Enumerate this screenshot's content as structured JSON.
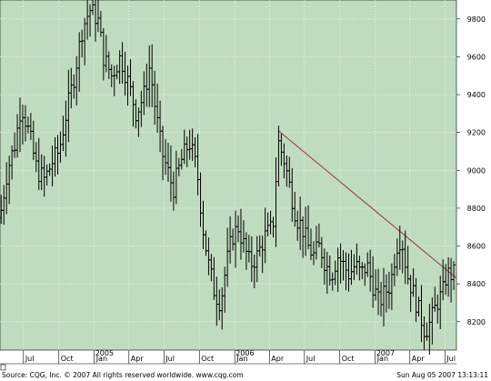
{
  "chart_data": {
    "type": "ohlc-bar",
    "title": "",
    "xlabel": "",
    "ylabel": "",
    "ylim": [
      8050,
      9900
    ],
    "y_ticks": [
      8200,
      8400,
      8600,
      8800,
      9000,
      9200,
      9400,
      9600,
      9800
    ],
    "y_tick_labels": [
      "8200",
      "8400",
      "8600",
      "8800",
      "9000",
      "9200",
      "9400",
      "9600",
      "9800"
    ],
    "x_range": [
      "2004-05-01",
      "2007-07-31"
    ],
    "x_ticks": [
      {
        "date": "2004-07-01",
        "label": "Jul"
      },
      {
        "date": "2004-10-01",
        "label": "Oct"
      },
      {
        "date": "2005-01-01",
        "label": "Jan"
      },
      {
        "date": "2005-04-01",
        "label": "Apr"
      },
      {
        "date": "2005-07-01",
        "label": "Jul"
      },
      {
        "date": "2005-10-01",
        "label": "Oct"
      },
      {
        "date": "2006-01-01",
        "label": "Jan"
      },
      {
        "date": "2006-04-01",
        "label": "Apr"
      },
      {
        "date": "2006-07-01",
        "label": "Jul"
      },
      {
        "date": "2006-10-01",
        "label": "Oct"
      },
      {
        "date": "2007-01-01",
        "label": "Jan"
      },
      {
        "date": "2007-04-01",
        "label": "Apr"
      },
      {
        "date": "2007-07-01",
        "label": "Jul"
      }
    ],
    "year_labels": [
      {
        "date": "2005-01-01",
        "label": "2005"
      },
      {
        "date": "2006-01-01",
        "label": "2006"
      },
      {
        "date": "2007-01-01",
        "label": "2007"
      }
    ],
    "grid": true,
    "price_path": [
      [
        "2004-05-01",
        8750
      ],
      [
        "2004-05-20",
        9000
      ],
      [
        "2004-06-10",
        9150
      ],
      [
        "2004-06-25",
        9350
      ],
      [
        "2004-07-15",
        9200
      ],
      [
        "2004-08-05",
        9000
      ],
      [
        "2004-08-25",
        8950
      ],
      [
        "2004-09-15",
        9050
      ],
      [
        "2004-10-01",
        9100
      ],
      [
        "2004-10-20",
        9300
      ],
      [
        "2004-11-10",
        9500
      ],
      [
        "2004-12-01",
        9750
      ],
      [
        "2004-12-20",
        9850
      ],
      [
        "2005-01-10",
        9800
      ],
      [
        "2005-01-25",
        9600
      ],
      [
        "2005-02-15",
        9500
      ],
      [
        "2005-03-10",
        9600
      ],
      [
        "2005-04-01",
        9450
      ],
      [
        "2005-04-20",
        9300
      ],
      [
        "2005-05-10",
        9400
      ],
      [
        "2005-05-25",
        9550
      ],
      [
        "2005-06-10",
        9300
      ],
      [
        "2005-06-25",
        9100
      ],
      [
        "2005-07-10",
        9000
      ],
      [
        "2005-07-25",
        8900
      ],
      [
        "2005-08-15",
        9050
      ],
      [
        "2005-09-05",
        9150
      ],
      [
        "2005-09-25",
        9000
      ],
      [
        "2005-10-10",
        8700
      ],
      [
        "2005-10-25",
        8500
      ],
      [
        "2005-11-10",
        8350
      ],
      [
        "2005-11-25",
        8300
      ],
      [
        "2005-12-10",
        8500
      ],
      [
        "2005-12-25",
        8650
      ],
      [
        "2006-01-10",
        8700
      ],
      [
        "2006-01-25",
        8600
      ],
      [
        "2006-02-10",
        8500
      ],
      [
        "2006-03-01",
        8550
      ],
      [
        "2006-03-20",
        8650
      ],
      [
        "2006-04-10",
        8700
      ],
      [
        "2006-04-24",
        9150
      ],
      [
        "2006-05-10",
        9050
      ],
      [
        "2006-05-25",
        8900
      ],
      [
        "2006-06-10",
        8750
      ],
      [
        "2006-06-25",
        8700
      ],
      [
        "2006-07-10",
        8600
      ],
      [
        "2006-07-25",
        8550
      ],
      [
        "2006-08-10",
        8600
      ],
      [
        "2006-08-25",
        8500
      ],
      [
        "2006-09-10",
        8450
      ],
      [
        "2006-09-25",
        8550
      ],
      [
        "2006-10-10",
        8500
      ],
      [
        "2006-10-25",
        8450
      ],
      [
        "2006-11-10",
        8500
      ],
      [
        "2006-11-25",
        8450
      ],
      [
        "2006-12-10",
        8500
      ],
      [
        "2006-12-25",
        8400
      ],
      [
        "2007-01-10",
        8300
      ],
      [
        "2007-01-25",
        8350
      ],
      [
        "2007-02-10",
        8400
      ],
      [
        "2007-02-25",
        8600
      ],
      [
        "2007-03-10",
        8650
      ],
      [
        "2007-03-25",
        8450
      ],
      [
        "2007-04-10",
        8350
      ],
      [
        "2007-04-25",
        8250
      ],
      [
        "2007-05-10",
        8150
      ],
      [
        "2007-05-25",
        8200
      ],
      [
        "2007-06-10",
        8300
      ],
      [
        "2007-06-25",
        8350
      ],
      [
        "2007-07-05",
        8450
      ],
      [
        "2007-07-15",
        8450
      ]
    ],
    "trendline": {
      "start": [
        "2006-04-24",
        9210
      ],
      "end": [
        "2007-07-31",
        8430
      ],
      "color": "#8b3a3a"
    },
    "colors": {
      "background": "#c0dcc0",
      "bars": "#000000",
      "grid": "#ffffff",
      "axis_panel": "#ffffff"
    }
  },
  "footer": {
    "left": "Source: CQG, Inc. © 2007 All rights reserved worldwide. www.cqg.com",
    "right": "Sun Aug 05 2007 13:13:11"
  }
}
